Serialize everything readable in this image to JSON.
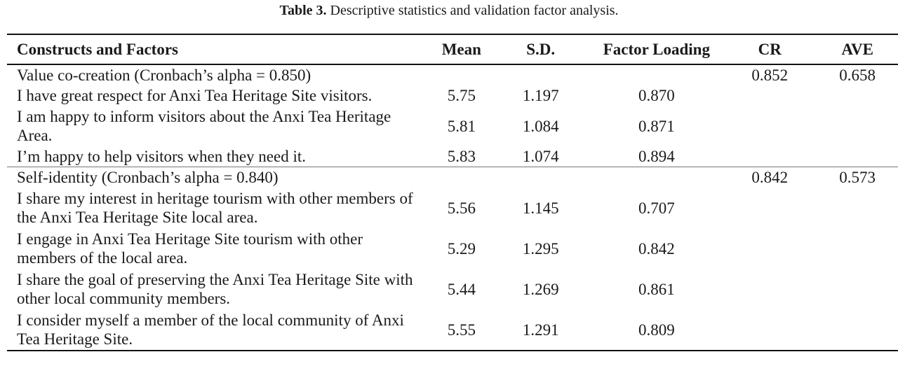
{
  "caption": {
    "label": "Table 3.",
    "text": " Descriptive statistics and validation factor analysis."
  },
  "headers": [
    "Constructs and Factors",
    "Mean",
    "S.D.",
    "Factor Loading",
    "CR",
    "AVE"
  ],
  "groups": [
    {
      "title": "Value co-creation (Cronbach’s alpha = 0.850)",
      "cr": "0.852",
      "ave": "0.658",
      "items": [
        {
          "text": "I have great respect for Anxi Tea Heritage Site visitors.",
          "mean": "5.75",
          "sd": "1.197",
          "loading": "0.870"
        },
        {
          "text": "I am happy to inform visitors about the Anxi Tea Heritage Area.",
          "mean": "5.81",
          "sd": "1.084",
          "loading": "0.871"
        },
        {
          "text": "I’m happy to help visitors when they need it.",
          "mean": "5.83",
          "sd": "1.074",
          "loading": "0.894"
        }
      ]
    },
    {
      "title": "Self-identity (Cronbach’s alpha = 0.840)",
      "cr": "0.842",
      "ave": "0.573",
      "items": [
        {
          "text": "I share my interest in heritage tourism with other members of the Anxi Tea Heritage Site local area.",
          "mean": "5.56",
          "sd": "1.145",
          "loading": "0.707"
        },
        {
          "text": "I engage in Anxi Tea Heritage Site tourism with other members of the local area.",
          "mean": "5.29",
          "sd": "1.295",
          "loading": "0.842"
        },
        {
          "text": "I share the goal of preserving the Anxi Tea Heritage Site with other local community members.",
          "mean": "5.44",
          "sd": "1.269",
          "loading": "0.861"
        },
        {
          "text": "I consider myself a member of the local community of Anxi Tea Heritage Site.",
          "mean": "5.55",
          "sd": "1.291",
          "loading": "0.809"
        }
      ]
    }
  ]
}
